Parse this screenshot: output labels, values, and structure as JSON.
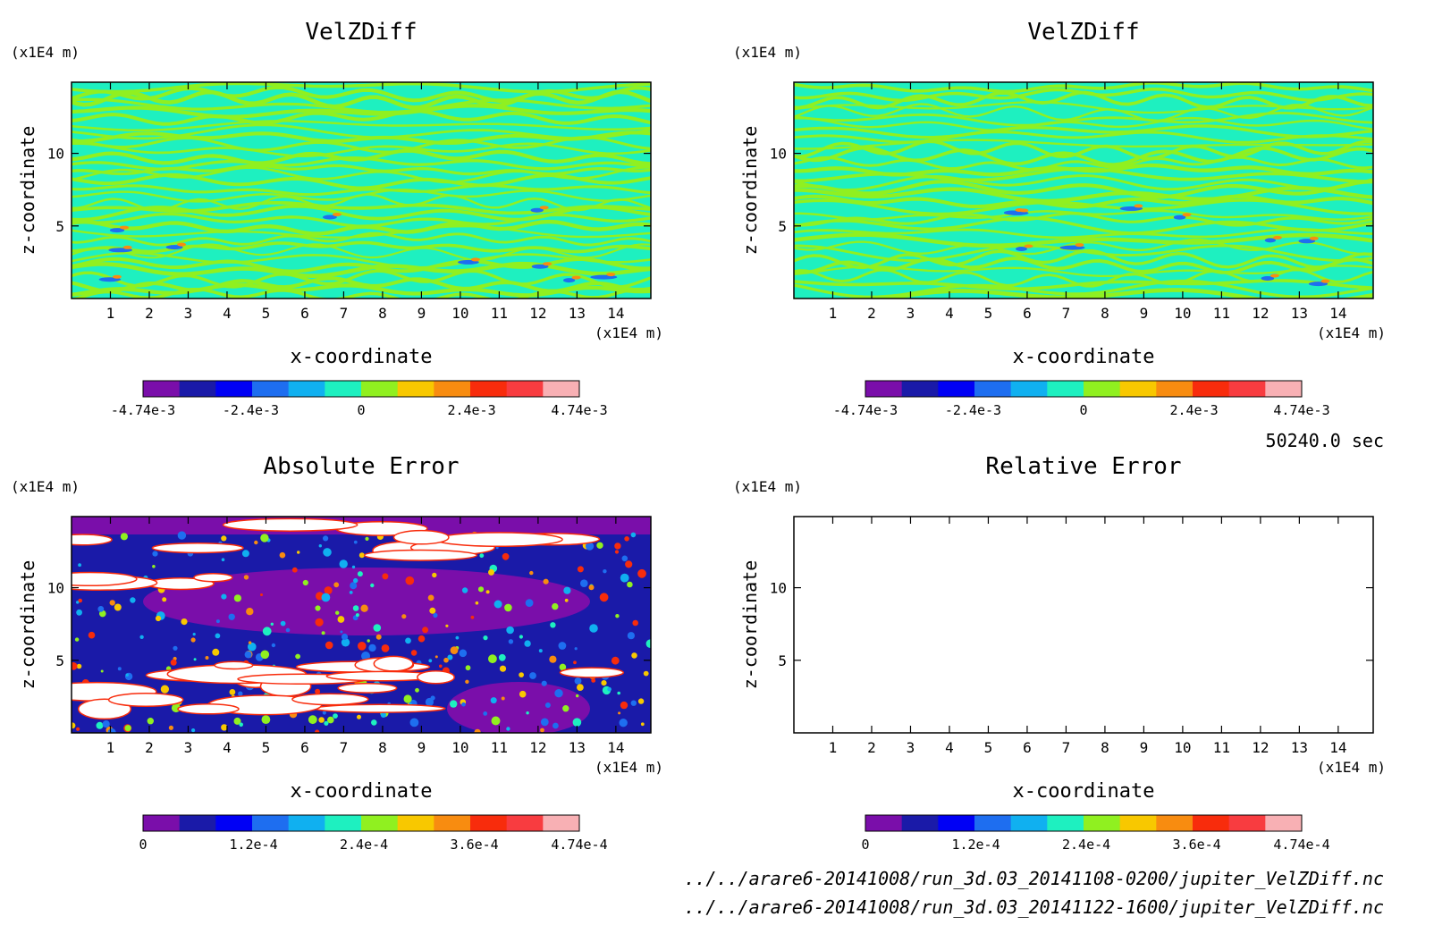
{
  "palette": [
    "#7a0eaa",
    "#1a1aa8",
    "#0000f5",
    "#1e6ef0",
    "#10b0f0",
    "#1ef0c0",
    "#90f020",
    "#f8c800",
    "#f88c10",
    "#f82c0c",
    "#f83c40",
    "#f8b0b4"
  ],
  "time_label": "50240.0 sec",
  "files": [
    "../../arare6-20141008/run_3d.03_20141108-0200/jupiter_VelZDiff.nc",
    "../../arare6-20141008/run_3d.03_20141122-1600/jupiter_VelZDiff.nc"
  ],
  "chart_data": [
    {
      "type": "heatmap",
      "title": "VelZDiff",
      "xlabel": "x-coordinate",
      "ylabel": "z-coordinate",
      "x_unit": "(x1E4 m)",
      "y_unit": "(x1E4 m)",
      "xlim": [
        0,
        14.9
      ],
      "ylim": [
        0,
        14.9
      ],
      "x_ticks": [
        "1",
        "2",
        "3",
        "4",
        "5",
        "6",
        "7",
        "8",
        "9",
        "10",
        "11",
        "12",
        "13",
        "14"
      ],
      "y_ticks": [
        "5",
        "10"
      ],
      "colorbar_range": [
        -0.00474,
        0.00474
      ],
      "colorbar_labels": [
        "-4.74e-3",
        "-2.4e-3",
        "0",
        "2.4e-3",
        "4.74e-3"
      ],
      "pattern": "banded"
    },
    {
      "type": "heatmap",
      "title": "VelZDiff",
      "xlabel": "x-coordinate",
      "ylabel": "z-coordinate",
      "x_unit": "(x1E4 m)",
      "y_unit": "(x1E4 m)",
      "xlim": [
        0,
        14.9
      ],
      "ylim": [
        0,
        14.9
      ],
      "x_ticks": [
        "1",
        "2",
        "3",
        "4",
        "5",
        "6",
        "7",
        "8",
        "9",
        "10",
        "11",
        "12",
        "13",
        "14"
      ],
      "y_ticks": [
        "5",
        "10"
      ],
      "colorbar_range": [
        -0.00474,
        0.00474
      ],
      "colorbar_labels": [
        "-4.74e-3",
        "-2.4e-3",
        "0",
        "2.4e-3",
        "4.74e-3"
      ],
      "pattern": "banded"
    },
    {
      "type": "heatmap",
      "title": "Absolute Error",
      "xlabel": "x-coordinate",
      "ylabel": "z-coordinate",
      "x_unit": "(x1E4 m)",
      "y_unit": "(x1E4 m)",
      "xlim": [
        0,
        14.9
      ],
      "ylim": [
        0,
        14.9
      ],
      "x_ticks": [
        "1",
        "2",
        "3",
        "4",
        "5",
        "6",
        "7",
        "8",
        "9",
        "10",
        "11",
        "12",
        "13",
        "14"
      ],
      "y_ticks": [
        "5",
        "10"
      ],
      "colorbar_range": [
        0,
        0.000474
      ],
      "colorbar_labels": [
        "0",
        "1.2e-4",
        "2.4e-4",
        "3.6e-4",
        "4.74e-4"
      ],
      "pattern": "error"
    },
    {
      "type": "heatmap",
      "title": "Relative Error",
      "xlabel": "x-coordinate",
      "ylabel": "z-coordinate",
      "x_unit": "(x1E4 m)",
      "y_unit": "(x1E4 m)",
      "xlim": [
        0,
        14.9
      ],
      "ylim": [
        0,
        14.9
      ],
      "x_ticks": [
        "1",
        "2",
        "3",
        "4",
        "5",
        "6",
        "7",
        "8",
        "9",
        "10",
        "11",
        "12",
        "13",
        "14"
      ],
      "y_ticks": [
        "5",
        "10"
      ],
      "colorbar_range": [
        0,
        0.000474
      ],
      "colorbar_labels": [
        "0",
        "1.2e-4",
        "2.4e-4",
        "3.6e-4",
        "4.74e-4"
      ],
      "pattern": "empty"
    }
  ]
}
